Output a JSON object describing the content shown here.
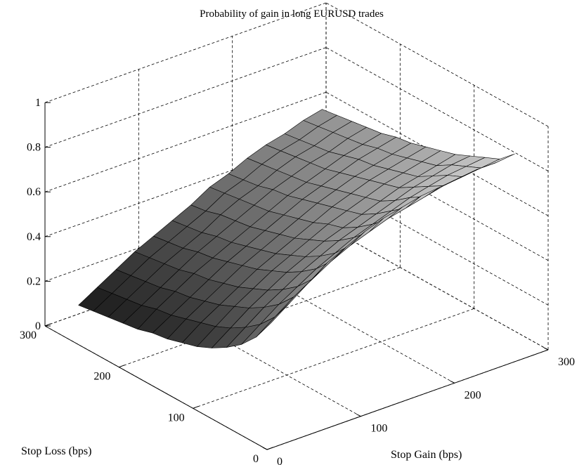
{
  "chart_data": {
    "type": "surface",
    "title": "Probability of gain in long EURUSD trades",
    "xlabel": "Stop Gain (bps)",
    "ylabel": "Stop Loss (bps)",
    "zlabel": "",
    "xlim": [
      0,
      300
    ],
    "ylim": [
      0,
      300
    ],
    "zlim": [
      0,
      1
    ],
    "xticks": [
      "0",
      "100",
      "200",
      "300"
    ],
    "yticks": [
      "0",
      "100",
      "200",
      "300"
    ],
    "zticks": [
      "0",
      "0.2",
      "0.4",
      "0.6",
      "0.8",
      "1"
    ],
    "grid": true,
    "colormap": "gray",
    "x": [
      20,
      40,
      60,
      80,
      100,
      120,
      140,
      160,
      180,
      200,
      220,
      240,
      260,
      280
    ],
    "y": [
      20,
      40,
      60,
      80,
      100,
      120,
      140,
      160,
      180,
      200,
      220,
      240,
      260,
      280
    ],
    "z": [
      [
        0.5,
        0.56,
        0.62,
        0.68,
        0.72,
        0.76,
        0.79,
        0.81,
        0.83,
        0.84,
        0.85,
        0.86,
        0.86,
        0.87
      ],
      [
        0.4,
        0.46,
        0.52,
        0.57,
        0.62,
        0.66,
        0.69,
        0.72,
        0.74,
        0.76,
        0.78,
        0.79,
        0.8,
        0.81
      ],
      [
        0.33,
        0.39,
        0.45,
        0.5,
        0.55,
        0.59,
        0.63,
        0.66,
        0.69,
        0.72,
        0.74,
        0.76,
        0.77,
        0.78
      ],
      [
        0.28,
        0.34,
        0.4,
        0.45,
        0.5,
        0.54,
        0.58,
        0.61,
        0.64,
        0.67,
        0.7,
        0.72,
        0.74,
        0.75
      ],
      [
        0.24,
        0.3,
        0.36,
        0.41,
        0.46,
        0.5,
        0.54,
        0.57,
        0.6,
        0.63,
        0.66,
        0.68,
        0.7,
        0.72
      ],
      [
        0.21,
        0.27,
        0.33,
        0.38,
        0.43,
        0.47,
        0.51,
        0.55,
        0.58,
        0.61,
        0.64,
        0.66,
        0.68,
        0.7
      ],
      [
        0.19,
        0.25,
        0.3,
        0.35,
        0.4,
        0.44,
        0.48,
        0.52,
        0.56,
        0.59,
        0.62,
        0.64,
        0.66,
        0.68
      ],
      [
        0.17,
        0.23,
        0.28,
        0.33,
        0.38,
        0.42,
        0.46,
        0.5,
        0.54,
        0.57,
        0.6,
        0.62,
        0.64,
        0.66
      ],
      [
        0.16,
        0.21,
        0.26,
        0.31,
        0.36,
        0.4,
        0.44,
        0.48,
        0.52,
        0.55,
        0.58,
        0.61,
        0.63,
        0.65
      ],
      [
        0.14,
        0.2,
        0.25,
        0.3,
        0.34,
        0.38,
        0.42,
        0.46,
        0.5,
        0.53,
        0.56,
        0.59,
        0.61,
        0.63
      ],
      [
        0.13,
        0.18,
        0.23,
        0.28,
        0.33,
        0.37,
        0.41,
        0.45,
        0.49,
        0.52,
        0.55,
        0.57,
        0.6,
        0.62
      ],
      [
        0.12,
        0.17,
        0.22,
        0.27,
        0.31,
        0.35,
        0.4,
        0.44,
        0.47,
        0.51,
        0.54,
        0.56,
        0.59,
        0.61
      ],
      [
        0.11,
        0.16,
        0.21,
        0.26,
        0.3,
        0.34,
        0.38,
        0.43,
        0.46,
        0.5,
        0.53,
        0.55,
        0.58,
        0.6
      ],
      [
        0.1,
        0.15,
        0.2,
        0.25,
        0.29,
        0.33,
        0.37,
        0.42,
        0.45,
        0.49,
        0.52,
        0.54,
        0.57,
        0.59
      ]
    ]
  }
}
